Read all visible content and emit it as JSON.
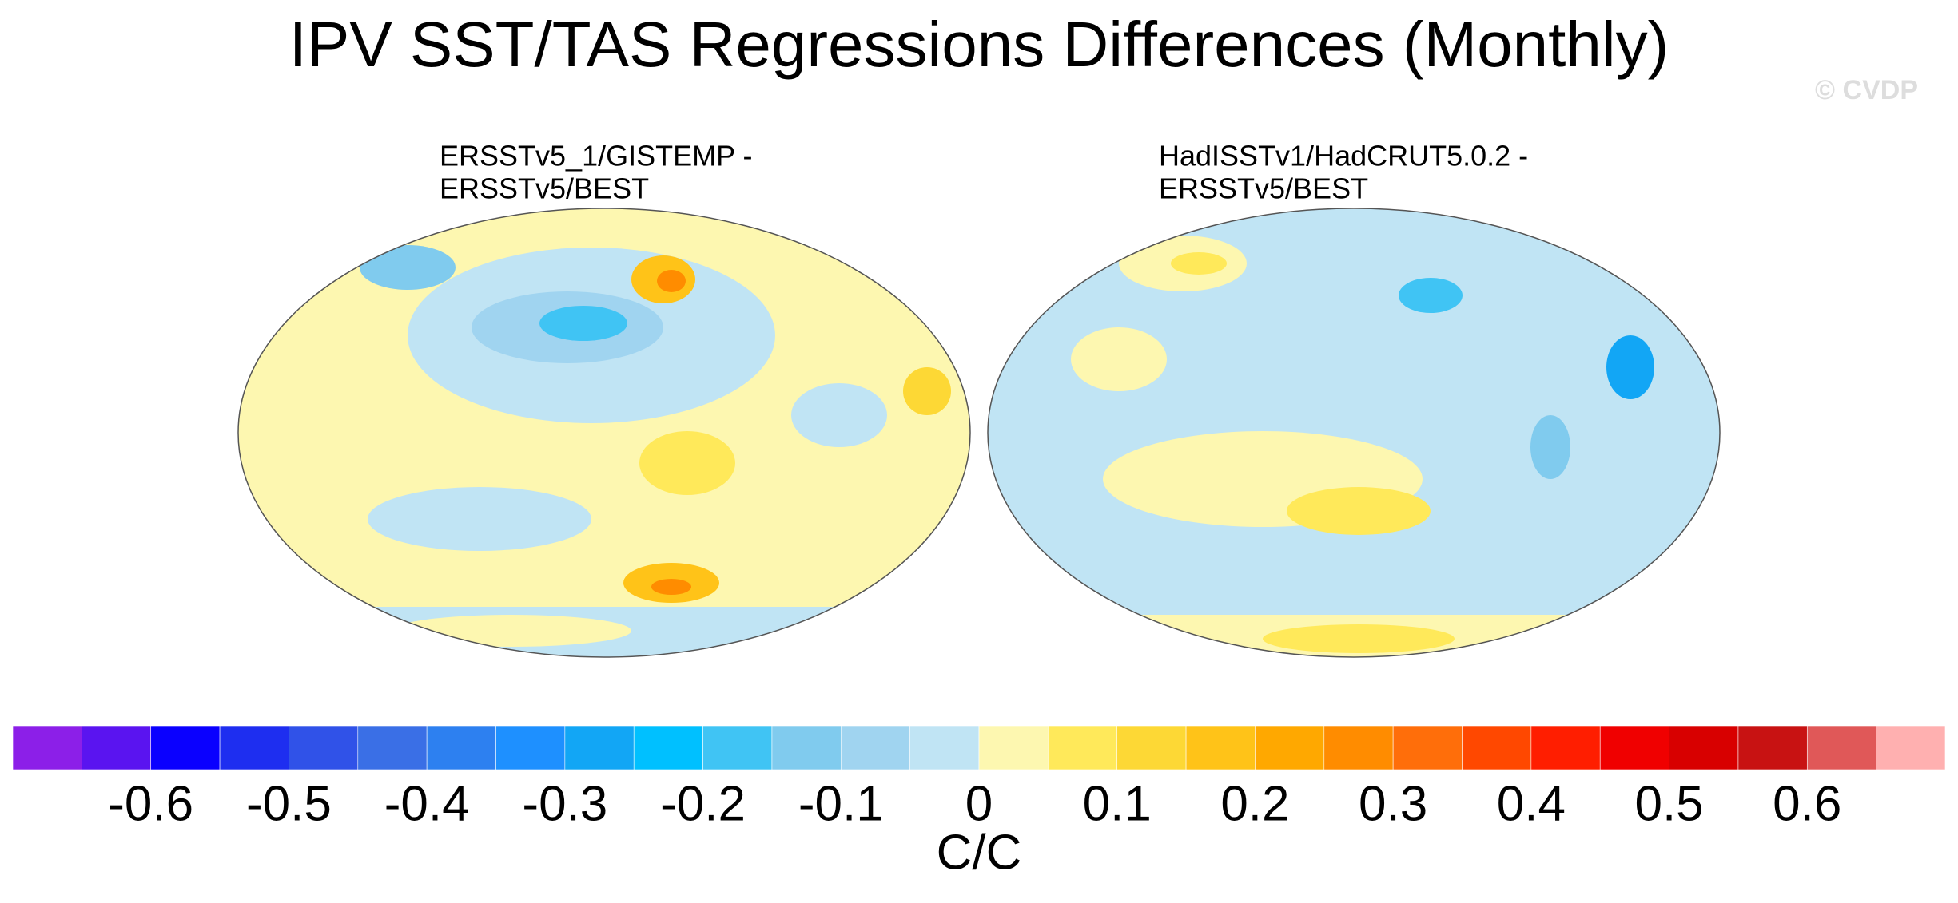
{
  "title": "IPV SST/TAS Regressions Differences (Monthly)",
  "watermark": "© CVDP",
  "panels": [
    {
      "title_lines": [
        "ERSSTv5_1/GISTEMP -",
        "ERSSTv5/BEST"
      ]
    },
    {
      "title_lines": [
        "HadISSTv1/HadCRUT5.0.2 -",
        "ERSSTv5/BEST"
      ]
    }
  ],
  "colorbar": {
    "levels": [
      -0.65,
      -0.6,
      -0.55,
      -0.5,
      -0.45,
      -0.4,
      -0.35,
      -0.3,
      -0.25,
      -0.2,
      -0.15,
      -0.1,
      -0.05,
      0,
      0.05,
      0.1,
      0.15,
      0.2,
      0.25,
      0.3,
      0.35,
      0.4,
      0.45,
      0.5,
      0.55,
      0.6,
      0.65
    ],
    "colors": [
      "#8c1fe8",
      "#5a14f0",
      "#0a00ff",
      "#1e2ef0",
      "#3052e8",
      "#3a6fe6",
      "#2d80f0",
      "#1e90ff",
      "#12a6f5",
      "#00c0ff",
      "#40c4f4",
      "#80cbee",
      "#a0d4f0",
      "#c0e4f4",
      "#fdf7b0",
      "#ffe95a",
      "#fdd835",
      "#ffc318",
      "#ffa800",
      "#ff8c00",
      "#ff6e0a",
      "#ff4800",
      "#ff1e00",
      "#f00000",
      "#d80000",
      "#c81212",
      "#e05858",
      "#ffb0b0"
    ],
    "ticks": [
      -0.6,
      -0.5,
      -0.4,
      -0.3,
      -0.2,
      -0.1,
      0,
      0.1,
      0.2,
      0.3,
      0.4,
      0.5,
      0.6
    ],
    "unit": "C/C"
  }
}
